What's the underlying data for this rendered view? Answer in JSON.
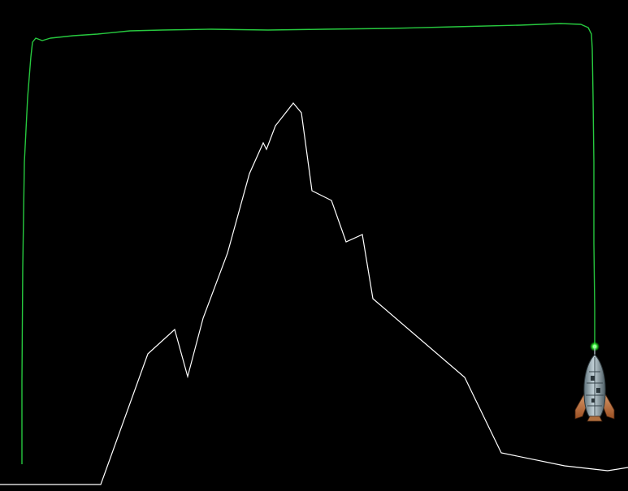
{
  "game": {
    "background_color": "#000000",
    "terrain_color": "#ffffff",
    "trail_color": "#27c93f",
    "beacon_color": "#3cff3c"
  },
  "ship": {
    "icon": "rocket-icon",
    "body_color": "#8fa4ad",
    "fin_color": "#c8743a",
    "state": "landed"
  }
}
